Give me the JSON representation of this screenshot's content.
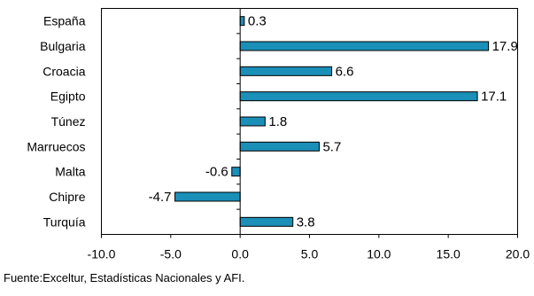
{
  "chart_data": {
    "type": "bar",
    "orientation": "horizontal",
    "categories": [
      "España",
      "Bulgaria",
      "Croacia",
      "Egipto",
      "Túnez",
      "Marruecos",
      "Malta",
      "Chipre",
      "Turquía"
    ],
    "values": [
      0.3,
      17.9,
      6.6,
      17.1,
      1.8,
      5.7,
      -0.6,
      -4.7,
      3.8
    ],
    "value_labels": [
      "0.3",
      "17.9",
      "6.6",
      "17.1",
      "1.8",
      "5.7",
      "-0.6",
      "-4.7",
      "3.8"
    ],
    "xlim": [
      -10.0,
      20.0
    ],
    "x_ticks": [
      -10.0,
      -5.0,
      0.0,
      5.0,
      10.0,
      15.0,
      20.0
    ],
    "x_tick_labels": [
      "-10.0",
      "-5.0",
      "0.0",
      "5.0",
      "10.0",
      "15.0",
      "20.0"
    ],
    "title": "",
    "xlabel": "",
    "ylabel": "",
    "grid": false,
    "legend": "none",
    "bar_color": "#1a8fb8",
    "bar_edge_color": "#000000"
  },
  "source_note": "Fuente:Exceltur, Estadísticas Nacionales y AFI."
}
